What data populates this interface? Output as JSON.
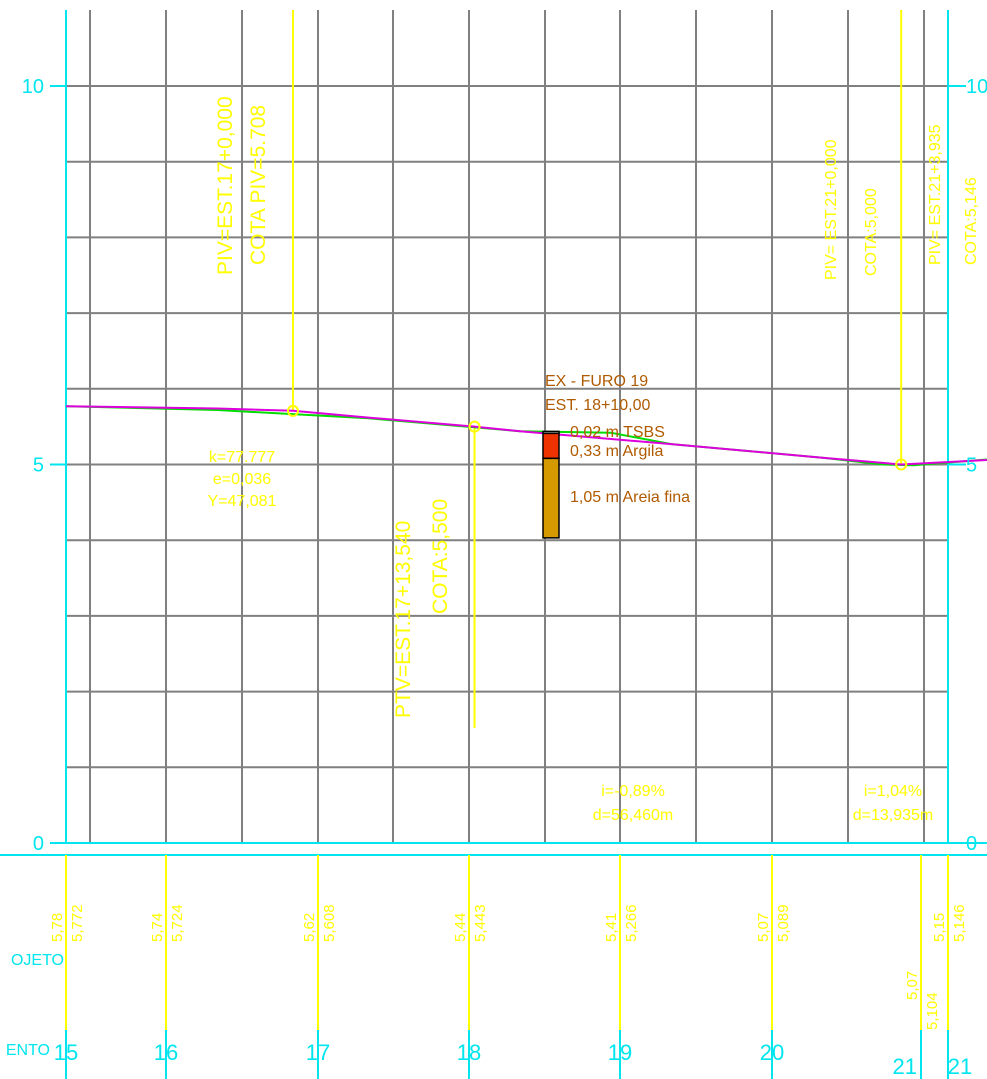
{
  "chart_data": {
    "type": "line",
    "y_axis": {
      "ticks": [
        "10",
        "5",
        "0"
      ],
      "tick_values": [
        10,
        5,
        0
      ],
      "range": [
        0,
        10
      ],
      "right_ticks": [
        "10",
        "5",
        "0"
      ]
    },
    "x_axis": {
      "station_labels": [
        "15",
        "16",
        "17",
        "18",
        "19",
        "20",
        "21",
        "21"
      ],
      "station_values": [
        15,
        16,
        17,
        18,
        19,
        20,
        21,
        21.3
      ]
    },
    "series": [
      {
        "color": "#00dd00",
        "x": [
          15,
          16,
          17,
          18,
          18.6,
          19,
          20,
          20.4,
          20.6,
          21.3,
          21.9
        ],
        "y": [
          5.77,
          5.72,
          5.61,
          5.44,
          5.42,
          5.27,
          5.09,
          5.0,
          4.99,
          5.1,
          5.15
        ]
      },
      {
        "color": "#dd00dd",
        "x": [
          15,
          16,
          16.5,
          17,
          17.7,
          18,
          19,
          20,
          20.52,
          21.92
        ],
        "y": [
          5.77,
          5.74,
          5.71,
          5.62,
          5.5,
          5.44,
          5.27,
          5.09,
          5.0,
          5.146
        ]
      }
    ],
    "pivs": [
      {
        "x": 16.5,
        "y": 5.708,
        "line1": "PIV=EST.17+0,000",
        "line2": "COTA PIV=5.708"
      },
      {
        "x": 20.52,
        "y": 5.0,
        "line1": "PIV= EST.21+0,000",
        "line2": "COTA:5,000"
      },
      {
        "x": 21.92,
        "y": 5.146,
        "line1": "PIV= EST.21+3,935",
        "line2": "COTA:5,146"
      }
    ],
    "ptv": {
      "x": 17.7,
      "y": 5.5,
      "line1": "PTV=EST.17+13,540",
      "line2": "COTA:5,500"
    },
    "curve_params": [
      "k=77.777",
      "e=0,036",
      "Y=47,081"
    ],
    "grades": [
      {
        "i": "i=-0,89%",
        "d": "d=56,460m"
      },
      {
        "i": "i=1,04%",
        "d": "d=13,935m"
      }
    ],
    "borehole": {
      "title1": "EX - FURO 19",
      "title2": "EST. 18+10,00",
      "layers": [
        {
          "label": "0,02 m  TSBS",
          "thickness": 0.02,
          "color": "#ffffff"
        },
        {
          "label": "0,33 m  Argila",
          "thickness": 0.33,
          "color": "#ee3300"
        },
        {
          "label": "1,05 m  Areia fina",
          "thickness": 1.05,
          "color": "#d49a00"
        }
      ]
    },
    "table": {
      "row1_label": "OJETO",
      "row2_label": "ENTO",
      "pairs": [
        {
          "a": "5,78",
          "b": "5,772"
        },
        {
          "a": "5,74",
          "b": "5,724"
        },
        {
          "a": "5,62",
          "b": "5,608"
        },
        {
          "a": "5,44",
          "b": "5,443"
        },
        {
          "a": "5,41",
          "b": "5,266"
        },
        {
          "a": "5,07",
          "b": "5,089"
        },
        {
          "a": "5,07",
          "b": "5,104"
        },
        {
          "a": "5,15",
          "b": "5,146"
        }
      ]
    }
  }
}
